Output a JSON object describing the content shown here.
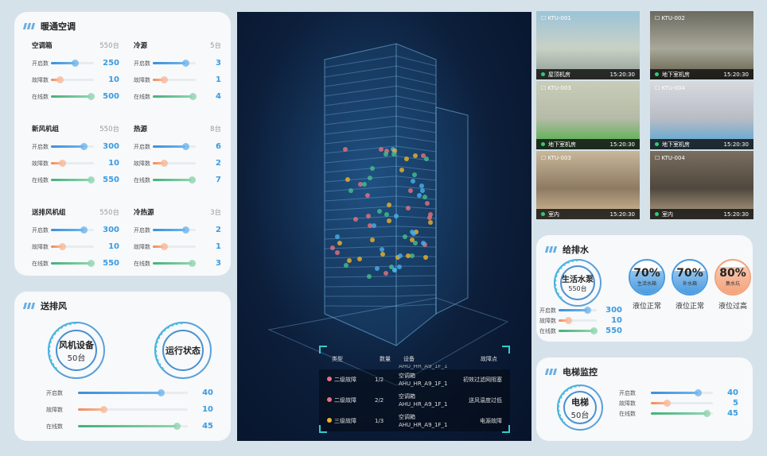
{
  "hvac": {
    "title": "暖通空调",
    "groups": [
      {
        "name": "空调箱",
        "count": "550台",
        "metrics": [
          {
            "label": "开启数",
            "value": "250",
            "frac": 0.55
          },
          {
            "label": "故障数",
            "value": "10",
            "frac": 0.2
          },
          {
            "label": "在线数",
            "value": "500",
            "frac": 0.92
          }
        ]
      },
      {
        "name": "冷源",
        "count": "5台",
        "metrics": [
          {
            "label": "开启数",
            "value": "3",
            "frac": 0.75
          },
          {
            "label": "故障数",
            "value": "1",
            "frac": 0.25
          },
          {
            "label": "在线数",
            "value": "4",
            "frac": 0.92
          }
        ]
      },
      {
        "name": "新风机组",
        "count": "550台",
        "metrics": [
          {
            "label": "开启数",
            "value": "300",
            "frac": 0.75
          },
          {
            "label": "故障数",
            "value": "10",
            "frac": 0.25
          },
          {
            "label": "在线数",
            "value": "550",
            "frac": 0.92
          }
        ]
      },
      {
        "name": "热源",
        "count": "8台",
        "metrics": [
          {
            "label": "开启数",
            "value": "6",
            "frac": 0.75
          },
          {
            "label": "故障数",
            "value": "2",
            "frac": 0.25
          },
          {
            "label": "在线数",
            "value": "7",
            "frac": 0.9
          }
        ]
      },
      {
        "name": "送排风机组",
        "count": "550台",
        "metrics": [
          {
            "label": "开启数",
            "value": "300",
            "frac": 0.75
          },
          {
            "label": "故障数",
            "value": "10",
            "frac": 0.25
          },
          {
            "label": "在线数",
            "value": "550",
            "frac": 0.92
          }
        ]
      },
      {
        "name": "冷热源",
        "count": "3台",
        "metrics": [
          {
            "label": "开启数",
            "value": "2",
            "frac": 0.75
          },
          {
            "label": "故障数",
            "value": "1",
            "frac": 0.25
          },
          {
            "label": "在线数",
            "value": "3",
            "frac": 0.9
          }
        ]
      }
    ]
  },
  "ventilation": {
    "title": "送排风",
    "device": {
      "name": "风机设备",
      "count": "50台"
    },
    "status": "运行状态",
    "metrics": [
      {
        "label": "开启数",
        "value": "40",
        "frac": 0.75
      },
      {
        "label": "故障数",
        "value": "10",
        "frac": 0.23
      },
      {
        "label": "在线数",
        "value": "45",
        "frac": 0.9
      }
    ]
  },
  "faults": {
    "headers": [
      "类型",
      "数量",
      "设备",
      "故障点"
    ],
    "partial_row": "AHU_HR_A9_1F_1",
    "rows": [
      {
        "type": "二级故障",
        "color": "#e8727e",
        "qty": "1/2",
        "device_type": "空调箱",
        "device_id": "AHU_HR_A9_1F_1",
        "point": "初效过滤网阻塞"
      },
      {
        "type": "二级故障",
        "color": "#e8727e",
        "qty": "2/2",
        "device_type": "空调箱",
        "device_id": "AHU_HR_A9_1F_1",
        "point": "送风温度过低"
      },
      {
        "type": "三级故障",
        "color": "#f0b429",
        "qty": "1/3",
        "device_type": "空调箱",
        "device_id": "AHU_HR_A9_1F_1",
        "point": "电源故障"
      }
    ]
  },
  "cameras": [
    {
      "id": "KTU-001",
      "location": "屋顶机房",
      "time": "15:20:30",
      "colors": [
        "#9cc3d8",
        "#c9d1c6",
        "#8a9890"
      ]
    },
    {
      "id": "KTU-002",
      "location": "地下室机房",
      "time": "15:20:30",
      "colors": [
        "#6b6a60",
        "#a8a89a",
        "#5f5a44"
      ]
    },
    {
      "id": "KTU-003",
      "location": "地下室机房",
      "time": "15:20:30",
      "colors": [
        "#c8cdb8",
        "#b5bba6",
        "#3fae3a"
      ]
    },
    {
      "id": "KTU-004",
      "location": "地下室机房",
      "time": "15:20:30",
      "colors": [
        "#d8dadf",
        "#b8bcc4",
        "#4aa3d8"
      ]
    },
    {
      "id": "KTU-003",
      "location": "室内",
      "time": "15:20:30",
      "colors": [
        "#c9b79a",
        "#8d7a62",
        "#d8c09a"
      ]
    },
    {
      "id": "KTU-004",
      "location": "室内",
      "time": "15:20:30",
      "colors": [
        "#7a6e60",
        "#50483e",
        "#b9a588"
      ]
    }
  ],
  "water": {
    "title": "给排水",
    "pump": {
      "name": "生活水泵",
      "count": "550台"
    },
    "metrics": [
      {
        "label": "开启数",
        "value": "300",
        "frac": 0.75
      },
      {
        "label": "故障数",
        "value": "10",
        "frac": 0.25
      },
      {
        "label": "在线数",
        "value": "550",
        "frac": 0.92
      }
    ],
    "tanks": [
      {
        "percent": "70%",
        "level": 0.7,
        "name": "生活水箱",
        "status": "液位正常",
        "color": "#4a9be0"
      },
      {
        "percent": "70%",
        "level": 0.7,
        "name": "补水箱",
        "status": "液位正常",
        "color": "#4a9be0"
      },
      {
        "percent": "80%",
        "level": 0.8,
        "name": "集水坑",
        "status": "液位过高",
        "color": "#f4a27a"
      }
    ]
  },
  "elevator": {
    "title": "电梯监控",
    "device": {
      "name": "电梯",
      "count": "50台"
    },
    "metrics": [
      {
        "label": "开启数",
        "value": "40",
        "frac": 0.75
      },
      {
        "label": "故障数",
        "value": "5",
        "frac": 0.25
      },
      {
        "label": "在线数",
        "value": "45",
        "frac": 0.9
      }
    ]
  }
}
